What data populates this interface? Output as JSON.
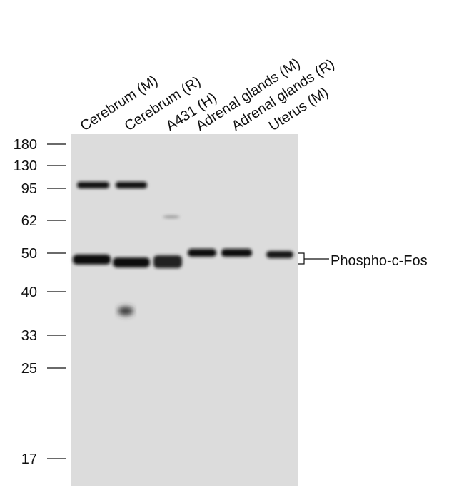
{
  "lanes": [
    "Cerebrum (M)",
    "Cerebrum (R)",
    "A431 (H)",
    "Adrenal glands (M)",
    "Adrenal glands (R)",
    "Uterus (M)"
  ],
  "markers": [
    180,
    130,
    95,
    62,
    50,
    40,
    33,
    25,
    17
  ],
  "band_label": "Phospho-c-Fos"
}
